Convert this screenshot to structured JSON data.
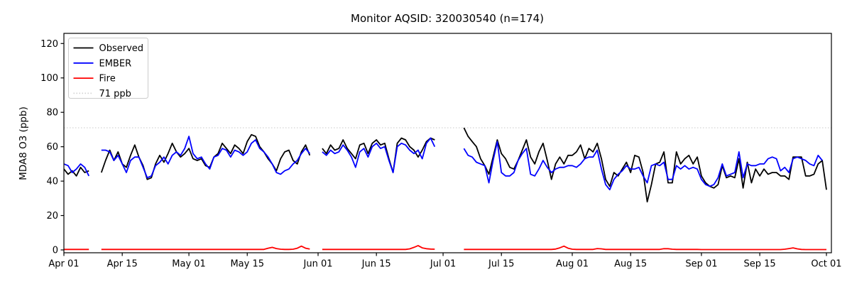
{
  "title": "Monitor AQSID: 320030540 (n=174)",
  "ylabel": "MDA8 O3 (ppb)",
  "colors": {
    "observed": "#000000",
    "ember": "#0000ff",
    "fire": "#ff0000",
    "threshold": "#d3d3d3",
    "axis": "#000000",
    "background": "#ffffff"
  },
  "legend": {
    "entries": [
      {
        "label": "Observed",
        "color": "#000000",
        "dash": ""
      },
      {
        "label": "EMBER",
        "color": "#0000ff",
        "dash": ""
      },
      {
        "label": "Fire",
        "color": "#ff0000",
        "dash": ""
      },
      {
        "label": "71 ppb",
        "color": "#d3d3d3",
        "dash": "1.5 2.5"
      }
    ]
  },
  "chart_data": {
    "type": "line",
    "title": "Monitor AQSID: 320030540 (n=174)",
    "xlabel": "",
    "ylabel": "MDA8 O3 (ppb)",
    "ylim": [
      -1.7,
      126
    ],
    "yticks": [
      0,
      20,
      40,
      60,
      80,
      100,
      120
    ],
    "x_is_daily_dates": "Apr 01 through Oct 01, one point per day, 184 days, nulls are missing days",
    "x_tick_days": [
      0,
      14,
      30,
      44,
      61,
      75,
      91,
      105,
      122,
      136,
      153,
      167,
      183
    ],
    "x_tick_labels": [
      "Apr 01",
      "Apr 15",
      "May 01",
      "May 15",
      "Jun 01",
      "Jun 15",
      "Jul 01",
      "Jul 15",
      "Aug 01",
      "Aug 15",
      "Sep 01",
      "Sep 15",
      "Oct 01"
    ],
    "n_days": 184,
    "n_observations": 174,
    "grid": false,
    "legend_position": "upper left",
    "threshold": {
      "value": 71,
      "label": "71 ppb",
      "color": "#d3d3d3",
      "style": "dotted"
    },
    "series": [
      {
        "name": "Observed",
        "color": "#000000",
        "values": [
          47,
          44,
          46,
          43,
          48,
          45,
          46,
          null,
          null,
          45,
          52,
          58,
          52,
          57,
          50,
          48,
          55,
          61,
          54,
          49,
          41,
          42,
          50,
          55,
          51,
          56,
          62,
          57,
          54,
          56,
          59,
          53,
          52,
          53,
          49,
          48,
          54,
          56,
          62,
          59,
          56,
          61,
          59,
          56,
          63,
          67,
          66,
          60,
          57,
          53,
          50,
          46,
          53,
          57,
          58,
          52,
          50,
          57,
          61,
          55,
          null,
          null,
          59,
          56,
          61,
          58,
          59,
          64,
          59,
          56,
          53,
          61,
          62,
          56,
          62,
          64,
          61,
          62,
          53,
          45,
          62,
          65,
          64,
          60,
          58,
          54,
          58,
          63,
          65,
          64,
          null,
          null,
          null,
          null,
          null,
          null,
          71,
          66,
          63,
          60,
          53,
          49,
          44,
          54,
          64,
          56,
          53,
          48,
          47,
          52,
          58,
          64,
          54,
          50,
          57,
          62,
          52,
          41,
          50,
          54,
          50,
          55,
          55,
          57,
          61,
          53,
          59,
          57,
          62,
          53,
          41,
          37,
          45,
          43,
          47,
          51,
          45,
          55,
          54,
          45,
          28,
          38,
          50,
          51,
          57,
          39,
          39,
          57,
          50,
          53,
          55,
          50,
          54,
          43,
          39,
          37,
          36,
          38,
          49,
          42,
          43,
          42,
          53,
          36,
          51,
          39,
          47,
          43,
          47,
          44,
          45,
          45,
          43,
          43,
          41,
          54,
          54,
          54,
          43,
          43,
          44,
          50,
          52,
          35
        ]
      },
      {
        "name": "EMBER",
        "color": "#0000ff",
        "values": [
          50,
          49,
          45,
          47,
          50,
          48,
          43,
          null,
          null,
          58,
          58,
          57,
          52,
          55,
          50,
          45,
          52,
          54,
          54,
          48,
          42,
          43,
          49,
          51,
          54,
          50,
          55,
          57,
          55,
          59,
          66,
          56,
          53,
          54,
          50,
          47,
          54,
          55,
          59,
          58,
          54,
          58,
          57,
          55,
          57,
          62,
          64,
          59,
          57,
          54,
          50,
          45,
          44,
          46,
          47,
          50,
          52,
          56,
          59,
          56,
          null,
          null,
          57,
          55,
          58,
          56,
          57,
          61,
          58,
          54,
          48,
          57,
          59,
          54,
          60,
          62,
          59,
          60,
          52,
          45,
          60,
          62,
          61,
          58,
          56,
          58,
          53,
          62,
          65,
          60,
          null,
          null,
          null,
          null,
          null,
          null,
          59,
          55,
          54,
          51,
          50,
          49,
          39,
          52,
          63,
          45,
          43,
          43,
          45,
          52,
          56,
          59,
          44,
          43,
          47,
          52,
          48,
          45,
          47,
          48,
          48,
          49,
          49,
          48,
          50,
          53,
          54,
          54,
          58,
          47,
          38,
          35,
          41,
          44,
          46,
          49,
          47,
          47,
          48,
          43,
          39,
          49,
          50,
          49,
          51,
          41,
          41,
          49,
          47,
          49,
          47,
          48,
          47,
          41,
          38,
          37,
          38,
          42,
          50,
          43,
          44,
          45,
          57,
          42,
          50,
          49,
          49,
          50,
          50,
          53,
          54,
          53,
          46,
          48,
          45,
          53,
          54,
          53,
          52,
          50,
          49,
          55,
          52,
          null
        ]
      },
      {
        "name": "Fire",
        "color": "#ff0000",
        "values": [
          0.3,
          0.3,
          0.3,
          0.3,
          0.3,
          0.3,
          0.3,
          null,
          null,
          0.3,
          0.3,
          0.3,
          0.3,
          0.3,
          0.3,
          0.3,
          0.3,
          0.3,
          0.3,
          0.3,
          0.3,
          0.3,
          0.3,
          0.3,
          0.3,
          0.3,
          0.3,
          0.3,
          0.3,
          0.3,
          0.3,
          0.3,
          0.3,
          0.3,
          0.3,
          0.3,
          0.3,
          0.3,
          0.3,
          0.3,
          0.3,
          0.3,
          0.3,
          0.3,
          0.3,
          0.3,
          0.3,
          0.3,
          0.3,
          1.0,
          1.5,
          0.8,
          0.4,
          0.3,
          0.3,
          0.4,
          1.0,
          2.2,
          1.0,
          0.5,
          null,
          null,
          0.3,
          0.3,
          0.3,
          0.3,
          0.3,
          0.3,
          0.3,
          0.3,
          0.3,
          0.3,
          0.3,
          0.3,
          0.3,
          0.3,
          0.3,
          0.3,
          0.3,
          0.3,
          0.3,
          0.3,
          0.3,
          0.6,
          1.5,
          2.5,
          1.2,
          0.7,
          0.5,
          0.4,
          null,
          null,
          null,
          null,
          null,
          null,
          0.3,
          0.3,
          0.3,
          0.3,
          0.3,
          0.3,
          0.3,
          0.3,
          0.3,
          0.3,
          0.3,
          0.3,
          0.3,
          0.3,
          0.3,
          0.3,
          0.3,
          0.3,
          0.3,
          0.3,
          0.3,
          0.3,
          0.5,
          1.2,
          2.2,
          1.0,
          0.4,
          0.3,
          0.3,
          0.3,
          0.3,
          0.3,
          0.8,
          0.6,
          0.3,
          0.3,
          0.3,
          0.3,
          0.3,
          0.3,
          0.3,
          0.3,
          0.3,
          0.3,
          0.3,
          0.3,
          0.3,
          0.3,
          0.7,
          0.7,
          0.4,
          0.3,
          0.3,
          0.3,
          0.3,
          0.3,
          0.3,
          0.2,
          0.2,
          0.2,
          0.2,
          0.2,
          0.2,
          0.2,
          0.2,
          0.2,
          0.2,
          0.2,
          0.2,
          0.2,
          0.2,
          0.2,
          0.2,
          0.2,
          0.2,
          0.2,
          0.2,
          0.4,
          0.8,
          1.2,
          0.6,
          0.3,
          0.2,
          0.2,
          0.2,
          0.2,
          0.2,
          0.2
        ]
      }
    ]
  }
}
